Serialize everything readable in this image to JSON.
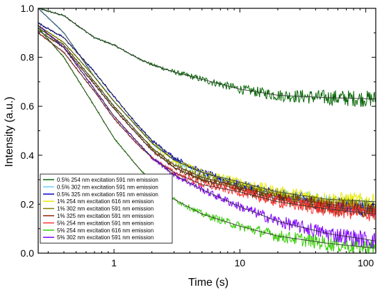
{
  "chart_data": {
    "type": "line",
    "xlabel": "Time (s)",
    "ylabel": "Intensity (a.u.)",
    "xscale": "log",
    "xlim": [
      0.25,
      120
    ],
    "ylim": [
      0.0,
      1.0
    ],
    "x_ticks": [
      1,
      10,
      100
    ],
    "x_tick_labels": [
      "1",
      "10",
      "100"
    ],
    "y_ticks": [
      0.0,
      0.2,
      0.4,
      0.6,
      0.8,
      1.0
    ],
    "y_tick_labels": [
      "0.0",
      "0.2",
      "0.4",
      "0.6",
      "0.8",
      "1.0"
    ],
    "grid": false,
    "legend_position": "bottom-left",
    "series": [
      {
        "name": "0.5% 254 nm excitation 591 nm emission",
        "color": "#006400",
        "x": [
          0.25,
          0.4,
          0.7,
          1,
          1.5,
          2,
          3,
          5,
          10,
          20,
          50,
          120
        ],
        "y": [
          1.0,
          0.97,
          0.88,
          0.85,
          0.8,
          0.77,
          0.74,
          0.71,
          0.67,
          0.645,
          0.635,
          0.63
        ]
      },
      {
        "name": "0.5% 302 nm excitation 591 nm emission",
        "color": "#66ccff",
        "x": [
          0.25,
          0.4,
          0.7,
          1,
          1.5,
          2,
          3,
          5,
          10,
          20,
          50,
          120
        ],
        "y": [
          1.0,
          0.9,
          0.72,
          0.62,
          0.52,
          0.45,
          0.38,
          0.33,
          0.28,
          0.24,
          0.21,
          0.19
        ]
      },
      {
        "name": "0.5% 325 nm excitation 591 nm emission",
        "color": "#0000cc",
        "x": [
          0.25,
          0.4,
          0.7,
          1,
          1.5,
          2,
          3,
          5,
          10,
          20,
          50,
          120
        ],
        "y": [
          0.94,
          0.88,
          0.74,
          0.64,
          0.53,
          0.46,
          0.39,
          0.33,
          0.28,
          0.24,
          0.2,
          0.18
        ]
      },
      {
        "name": "1% 254 nm excitation 616 nm emission",
        "color": "#e8e800",
        "x": [
          0.25,
          0.4,
          0.7,
          1,
          1.5,
          2,
          3,
          5,
          10,
          20,
          50,
          120
        ],
        "y": [
          0.93,
          0.86,
          0.72,
          0.62,
          0.52,
          0.45,
          0.38,
          0.33,
          0.29,
          0.25,
          0.22,
          0.21
        ]
      },
      {
        "name": "1% 302 nm excitation 591 nm emission",
        "color": "#808000",
        "x": [
          0.25,
          0.4,
          0.7,
          1,
          1.5,
          2,
          3,
          5,
          10,
          20,
          50,
          120
        ],
        "y": [
          0.92,
          0.85,
          0.7,
          0.6,
          0.5,
          0.43,
          0.36,
          0.31,
          0.27,
          0.23,
          0.2,
          0.18
        ]
      },
      {
        "name": "1% 325 nm excitation 591 nm emission",
        "color": "#8b2500",
        "x": [
          0.25,
          0.4,
          0.7,
          1,
          1.5,
          2,
          3,
          5,
          10,
          20,
          50,
          120
        ],
        "y": [
          0.91,
          0.84,
          0.69,
          0.59,
          0.49,
          0.42,
          0.35,
          0.3,
          0.26,
          0.22,
          0.19,
          0.17
        ]
      },
      {
        "name": "5% 254 nm excitation 591 nm emission",
        "color": "#ff3333",
        "x": [
          0.25,
          0.4,
          0.7,
          1,
          1.5,
          2,
          3,
          5,
          10,
          20,
          50,
          120
        ],
        "y": [
          0.9,
          0.82,
          0.66,
          0.55,
          0.45,
          0.39,
          0.33,
          0.28,
          0.25,
          0.21,
          0.18,
          0.16
        ]
      },
      {
        "name": "5% 254 nm excitation 616 nm emission",
        "color": "#33cc00",
        "x": [
          0.25,
          0.4,
          0.7,
          1,
          1.5,
          2,
          3,
          5,
          10,
          20,
          50,
          120
        ],
        "y": [
          0.92,
          0.8,
          0.6,
          0.47,
          0.36,
          0.29,
          0.22,
          0.16,
          0.11,
          0.07,
          0.04,
          0.02
        ]
      },
      {
        "name": "5% 302 nm excitation 591 nm emission",
        "color": "#7f00ff",
        "x": [
          0.25,
          0.4,
          0.7,
          1,
          1.5,
          2,
          3,
          5,
          10,
          20,
          50,
          120
        ],
        "y": [
          0.93,
          0.84,
          0.67,
          0.56,
          0.46,
          0.39,
          0.32,
          0.26,
          0.19,
          0.13,
          0.08,
          0.05
        ]
      }
    ]
  }
}
